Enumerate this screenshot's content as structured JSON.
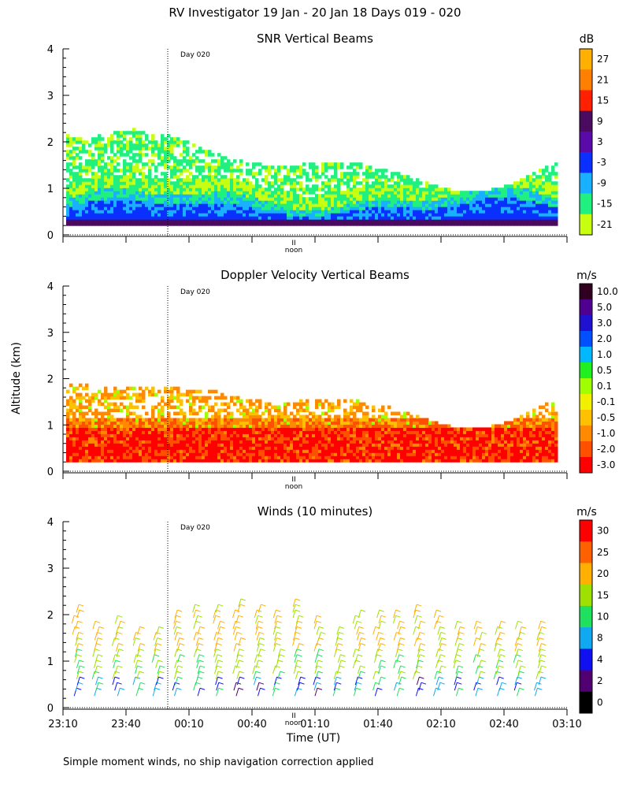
{
  "title": "RV Investigator  19 Jan - 20 Jan 18 Days 019 - 020",
  "ylabel": "Altitude (km)",
  "xlabel": "Time (UT)",
  "footnote": "Simple moment winds, no ship navigation correction applied",
  "marker_label": "Day 020",
  "noon_label": "noon",
  "noon_symbol": "II",
  "x_tick_labels": [
    "23:10",
    "23:40",
    "00:10",
    "00:40",
    "01:10",
    "01:40",
    "02:10",
    "02:40",
    "03:10"
  ],
  "y_tick_labels": [
    "0",
    "1",
    "2",
    "3",
    "4"
  ],
  "chart_data": [
    {
      "type": "heatmap",
      "title": "SNR Vertical Beams",
      "units": "dB",
      "x_range": [
        "23:10",
        "03:10"
      ],
      "y_range_km": [
        0,
        4
      ],
      "colorbar_labels": [
        "27",
        "21",
        "15",
        "9",
        "3",
        "-3",
        "-9",
        "-15",
        "-21"
      ],
      "colorbar_colors": [
        "#ffb000",
        "#ff8000",
        "#ff2000",
        "#4a0a60",
        "#5a0aa8",
        "#0a30ff",
        "#18b0ff",
        "#20f080",
        "#c8ff10"
      ],
      "profile": {
        "boundary_layer_top_km": [
          0.6,
          0.9
        ],
        "cloud_top_km": [
          1.2,
          2.3
        ]
      }
    },
    {
      "type": "heatmap",
      "title": "Doppler Velocity Vertical Beams",
      "units": "m/s",
      "x_range": [
        "23:10",
        "03:10"
      ],
      "y_range_km": [
        0,
        4
      ],
      "colorbar_labels": [
        "10.0",
        "5.0",
        "3.0",
        "2.0",
        "1.0",
        "0.5",
        "0.1",
        "-0.1",
        "-0.5",
        "-1.0",
        "-2.0",
        "-3.0"
      ],
      "colorbar_colors": [
        "#300020",
        "#500090",
        "#2010d0",
        "#0050ff",
        "#00b8ff",
        "#20f020",
        "#a0ff00",
        "#f0f000",
        "#ffc000",
        "#ff8a00",
        "#ff5000",
        "#ff0000"
      ]
    },
    {
      "type": "wind_barbs",
      "title": "Winds (10 minutes)",
      "units": "m/s",
      "x_range": [
        "23:10",
        "03:10"
      ],
      "y_range_km": [
        0,
        4
      ],
      "colorbar_labels": [
        "30",
        "25",
        "20",
        "15",
        "10",
        "8",
        "4",
        "2",
        "0"
      ],
      "colorbar_colors": [
        "#ff0000",
        "#ff6000",
        "#ffb000",
        "#a0e000",
        "#20e060",
        "#10a8f0",
        "#1010f0",
        "#500070",
        "#000000"
      ]
    }
  ]
}
